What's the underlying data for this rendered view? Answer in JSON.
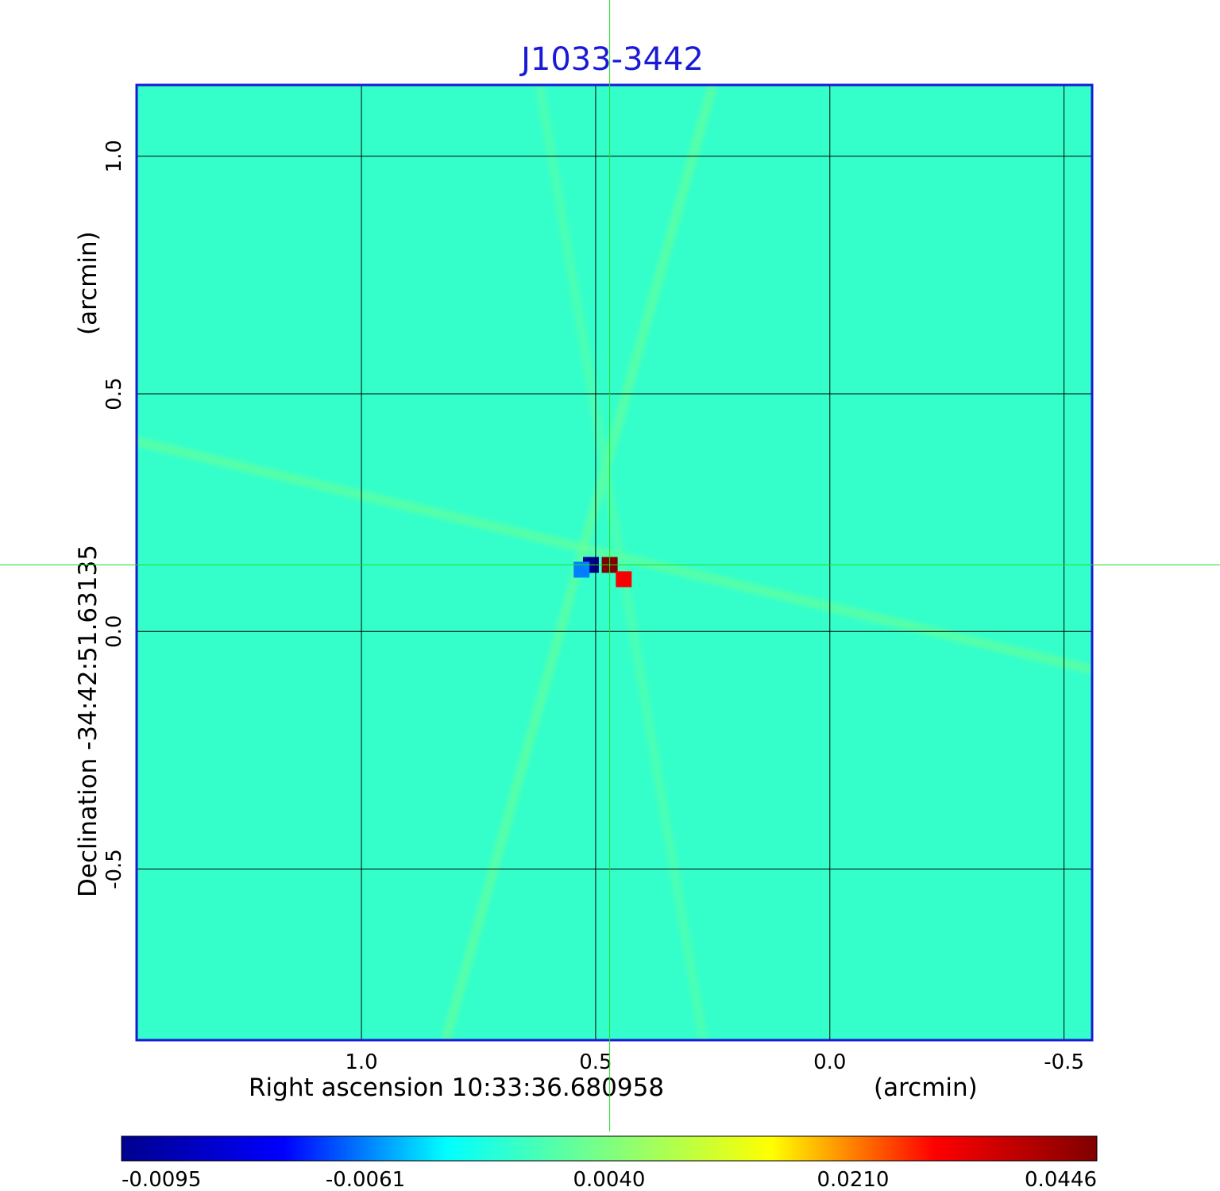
{
  "chart_data": {
    "type": "heatmap",
    "title": "J1033-3442",
    "xlabel": "Right ascension  10:33:36.680958",
    "xunit": "(arcmin)",
    "ylabel": "Declination  -34:42:51.63135",
    "yunit": "(arcmin)",
    "x_ticks": [
      1.0,
      0.5,
      0.0,
      -0.5
    ],
    "x_tick_labels": [
      "1.0",
      "0.5",
      "0.0",
      "-0.5"
    ],
    "y_ticks": [
      1.0,
      0.5,
      0.0,
      -0.5
    ],
    "y_tick_labels": [
      "1.0",
      "0.5",
      "0.0",
      "-0.5"
    ],
    "xlim": [
      1.48,
      -0.56
    ],
    "ylim": [
      -0.86,
      1.15
    ],
    "grid": true,
    "crosshair": {
      "x": 0.47,
      "y": 0.14,
      "color": "#22dd22"
    },
    "colormap": "jet",
    "colorbar": {
      "min": -0.0095,
      "max": 0.0446,
      "ticks": [
        "-0.0095",
        "-0.0061",
        "0.0040",
        "0.0210",
        "0.0446"
      ],
      "stops": [
        "#00008f",
        "#0000ff",
        "#00ffff",
        "#7fff7f",
        "#ffff00",
        "#ff0000",
        "#800000"
      ]
    },
    "background_value": 0.0,
    "sources": [
      {
        "x": 0.47,
        "y": 0.14,
        "value": 0.0446,
        "kind": "peak"
      },
      {
        "x": 0.44,
        "y": 0.11,
        "value": 0.03,
        "kind": "peak"
      },
      {
        "x": 0.51,
        "y": 0.14,
        "value": -0.0095,
        "kind": "trough"
      },
      {
        "x": 0.53,
        "y": 0.13,
        "value": -0.0061,
        "kind": "trough"
      }
    ],
    "streaks": [
      {
        "from": [
          1.48,
          0.4
        ],
        "to": [
          -0.56,
          -0.08
        ],
        "value": 0.003
      },
      {
        "from": [
          0.82,
          -0.86
        ],
        "to": [
          0.25,
          1.15
        ],
        "value": 0.003
      },
      {
        "from": [
          0.27,
          -0.86
        ],
        "to": [
          0.62,
          1.15
        ],
        "value": 0.002
      }
    ],
    "border_color": "#1a1ad6",
    "grid_color": "#000000"
  }
}
